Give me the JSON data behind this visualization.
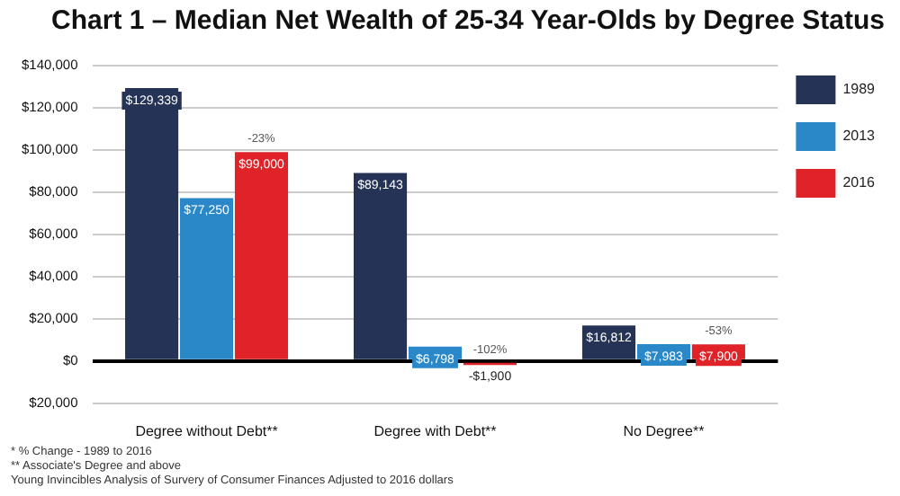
{
  "chart_data": {
    "type": "bar",
    "title": "Chart 1 – Median Net Wealth of 25-34 Year-Olds by Degree Status",
    "categories": [
      "Degree without Debt**",
      "Degree with Debt**",
      "No Degree**"
    ],
    "series": [
      {
        "name": "1989",
        "color": "#253356",
        "values": [
          129339,
          89143,
          16812
        ],
        "value_labels": [
          "$129,339",
          "$89,143",
          "$16,812"
        ]
      },
      {
        "name": "2013",
        "color": "#2a88c9",
        "values": [
          77250,
          6798,
          7983
        ],
        "value_labels": [
          "$77,250",
          "$6,798",
          "$7,983"
        ]
      },
      {
        "name": "2016",
        "color": "#e02229",
        "values": [
          99000,
          -1900,
          7900
        ],
        "value_labels": [
          "$99,000",
          "-$1,900",
          "$7,900"
        ]
      }
    ],
    "ylim": [
      -20000,
      140000
    ],
    "yticks": [
      {
        "value": -20000,
        "label": "$20,000"
      },
      {
        "value": 0,
        "label": "$0"
      },
      {
        "value": 20000,
        "label": "$20,000"
      },
      {
        "value": 40000,
        "label": "$40,000"
      },
      {
        "value": 60000,
        "label": "$60,000"
      },
      {
        "value": 80000,
        "label": "$80,000"
      },
      {
        "value": 100000,
        "label": "$100,000"
      },
      {
        "value": 120000,
        "label": "$120,000"
      },
      {
        "value": 140000,
        "label": "$140,000"
      }
    ],
    "grid": "y",
    "legend": "right",
    "annotations": [
      "-23%",
      "-102%",
      "-53%",
      "* % Change - 1989 to 2016",
      "** Associate's Degree and above",
      "Young Invincibles Analysis of Survery of Consumer Finances Adjusted to 2016 dollars"
    ]
  }
}
